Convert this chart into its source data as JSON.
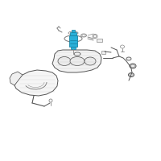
{
  "bg_color": "#ffffff",
  "highlight_color": "#2ab0d8",
  "line_color": "#555555",
  "line_color2": "#888888",
  "line_width": 0.7,
  "fig_size": [
    2.0,
    2.0
  ],
  "dpi": 100
}
